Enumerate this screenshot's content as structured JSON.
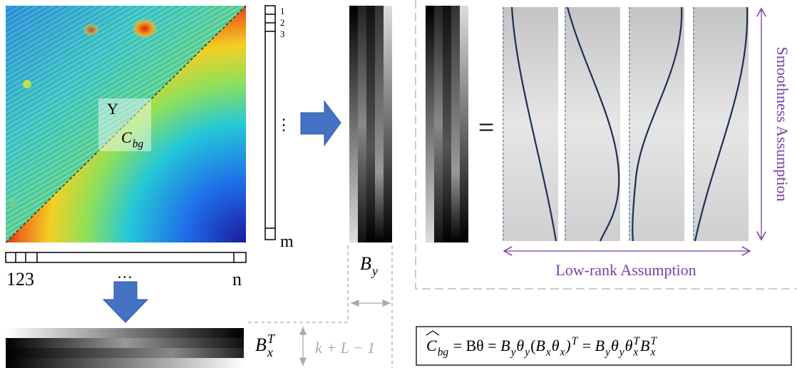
{
  "image_panel": {
    "upper_label": "Y",
    "lower_label": {
      "base": "C",
      "sub": "bg"
    }
  },
  "row_index": {
    "labels": [
      "1",
      "2",
      "3"
    ],
    "ellipsis": "⋮",
    "last": "m"
  },
  "column_index": {
    "labels": [
      "1",
      "2",
      "3"
    ],
    "ellipsis": "…",
    "last": "n"
  },
  "basis_y": {
    "label": {
      "base": "B",
      "sub": "y"
    }
  },
  "basis_x": {
    "label": {
      "base": "B",
      "sub": "x",
      "sup": "T"
    }
  },
  "dimension": {
    "label": "k + L − 1"
  },
  "decomposition": {
    "equals": "=",
    "smoothness": "Smoothness Assumption",
    "low_rank": "Low-rank Assumption"
  },
  "formula": {
    "tokens": [
      {
        "base": "C",
        "sub": "bg"
      },
      " = Bθ = ",
      {
        "base": "B",
        "sub": "y"
      },
      {
        "base": "θ",
        "sub": "y"
      },
      "(",
      {
        "base": "B",
        "sub": "x"
      },
      {
        "base": "θ",
        "sub": "x"
      },
      {
        "base": ")",
        "sup": "T"
      },
      " = ",
      {
        "base": "B",
        "sub": "y"
      },
      {
        "base": "θ",
        "sub": "y"
      },
      {
        "base": "θ",
        "sub": "x",
        "sup": "T"
      },
      {
        "base": "B",
        "sub": "x",
        "sup": "T"
      }
    ]
  }
}
